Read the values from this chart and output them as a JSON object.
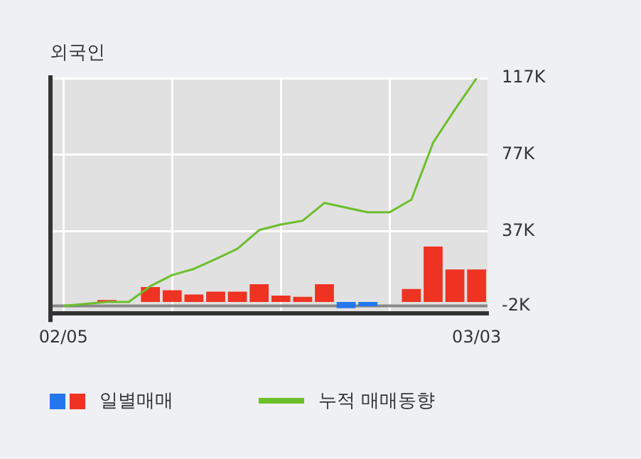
{
  "chart_data": {
    "type": "bar",
    "title": "외국인",
    "categories": [
      "02/05",
      null,
      null,
      null,
      null,
      null,
      null,
      null,
      null,
      null,
      null,
      null,
      null,
      null,
      null,
      null,
      null,
      null,
      null,
      "03/03"
    ],
    "series": [
      {
        "name": "일별매매",
        "colors": [
          "#ee3322",
          "#ee3322",
          "#ee3322",
          "#ee3322",
          "#ee3322",
          "#ee3322",
          "#ee3322",
          "#ee3322",
          "#ee3322",
          "#ee3322",
          "#ee3322",
          "#ee3322",
          "#ee3322",
          "#2277ee",
          "#2277ee",
          "#ee3322",
          "#ee3322",
          "#ee3322",
          "#ee3322",
          "#ee3322"
        ],
        "values": [
          0,
          0,
          1,
          0,
          7.8,
          6.1,
          3.9,
          5.4,
          5.4,
          9.3,
          3.4,
          2.7,
          9.3,
          -3.2,
          -2.2,
          0,
          6.8,
          29,
          17,
          17
        ]
      },
      {
        "name": "누적 매매동향",
        "type": "line",
        "color": "#6cbf2a",
        "values": [
          -2,
          -1,
          0,
          0,
          8.3,
          14.1,
          17.3,
          22.4,
          27.8,
          37.6,
          40.5,
          42.5,
          51.8,
          49.3,
          46.9,
          46.9,
          53.5,
          83.3,
          100.6,
          117
        ]
      }
    ],
    "ylim": [
      -6,
      117
    ],
    "yticks": [
      {
        "value": -2,
        "label": "-2K"
      },
      {
        "value": 37,
        "label": "37K"
      },
      {
        "value": 77,
        "label": "77K"
      },
      {
        "value": 117,
        "label": "117K"
      }
    ],
    "ref_lines": [
      {
        "axis": "y",
        "value": -2,
        "color": "#888888"
      }
    ],
    "grid": true,
    "legend": "bottom"
  }
}
